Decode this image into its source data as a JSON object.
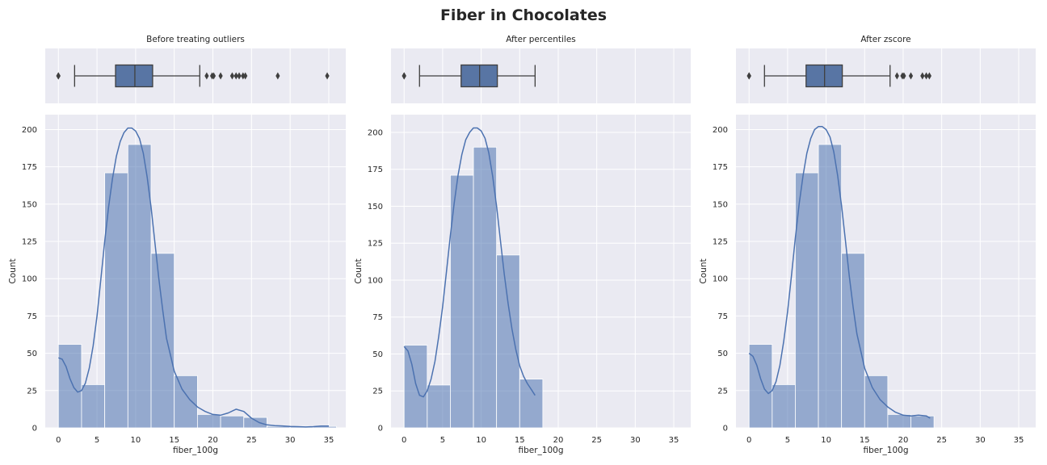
{
  "suptitle": "Fiber in Chocolates",
  "colors": {
    "panel_bg": "#eaeaf2",
    "grid": "#ffffff",
    "bar_fill": "#4c72b0",
    "bar_alpha": 0.55,
    "kde_line": "#4c72b0",
    "box_fill": "#5875a4",
    "box_edge": "#3f3f3f"
  },
  "chart_data": [
    {
      "type": "bar",
      "role": "histogram-with-kde",
      "title": "Before treating outliers",
      "xlabel": "fiber_100g",
      "ylabel": "Count",
      "xlim": [
        -1.7,
        37.2
      ],
      "ylim": [
        0,
        210
      ],
      "xticks": [
        0,
        5,
        10,
        15,
        20,
        25,
        30,
        35
      ],
      "yticks": [
        0,
        25,
        50,
        75,
        100,
        125,
        150,
        175,
        200
      ],
      "grid": true,
      "bins": [
        {
          "x0": 0,
          "x1": 3,
          "count": 56
        },
        {
          "x0": 3,
          "x1": 6,
          "count": 29
        },
        {
          "x0": 6,
          "x1": 9,
          "count": 171
        },
        {
          "x0": 9,
          "x1": 12,
          "count": 190
        },
        {
          "x0": 12,
          "x1": 15,
          "count": 117
        },
        {
          "x0": 15,
          "x1": 18,
          "count": 35
        },
        {
          "x0": 18,
          "x1": 21,
          "count": 9
        },
        {
          "x0": 21,
          "x1": 24,
          "count": 8
        },
        {
          "x0": 24,
          "x1": 27,
          "count": 7
        },
        {
          "x0": 27,
          "x1": 30,
          "count": 1
        },
        {
          "x0": 30,
          "x1": 33,
          "count": 1
        },
        {
          "x0": 33,
          "x1": 36,
          "count": 1
        }
      ],
      "kde": [
        [
          0,
          47
        ],
        [
          0.5,
          46
        ],
        [
          1,
          41
        ],
        [
          1.5,
          33
        ],
        [
          2,
          27
        ],
        [
          2.5,
          24
        ],
        [
          3,
          25
        ],
        [
          3.5,
          30
        ],
        [
          4,
          40
        ],
        [
          4.5,
          55
        ],
        [
          5,
          75
        ],
        [
          5.5,
          100
        ],
        [
          6,
          125
        ],
        [
          6.5,
          148
        ],
        [
          7,
          167
        ],
        [
          7.5,
          182
        ],
        [
          8,
          192
        ],
        [
          8.5,
          198
        ],
        [
          9,
          201
        ],
        [
          9.5,
          201
        ],
        [
          10,
          199
        ],
        [
          10.5,
          194
        ],
        [
          11,
          184
        ],
        [
          11.5,
          168
        ],
        [
          12,
          148
        ],
        [
          12.5,
          124
        ],
        [
          13,
          100
        ],
        [
          13.5,
          79
        ],
        [
          14,
          60
        ],
        [
          15,
          38
        ],
        [
          16,
          26
        ],
        [
          17,
          19
        ],
        [
          18,
          14
        ],
        [
          19,
          11
        ],
        [
          20,
          9
        ],
        [
          21,
          8.5
        ],
        [
          22,
          10
        ],
        [
          23,
          12.5
        ],
        [
          24,
          11
        ],
        [
          25,
          6.5
        ],
        [
          26,
          3.5
        ],
        [
          27,
          2
        ],
        [
          28,
          1.5
        ],
        [
          29,
          1.3
        ],
        [
          30,
          1
        ],
        [
          31,
          0.8
        ],
        [
          32,
          0.6
        ],
        [
          33,
          0.8
        ],
        [
          34,
          1.2
        ],
        [
          35,
          1.2
        ]
      ],
      "box": {
        "whisker_low": 2.1,
        "q1": 7.4,
        "median": 9.9,
        "q3": 12.2,
        "whisker_high": 18.3,
        "fliers": [
          0,
          0,
          0,
          19.2,
          19.9,
          20.1,
          21.0,
          22.5,
          23.0,
          23.4,
          23.9,
          24.2,
          28.4,
          34.8
        ]
      }
    },
    {
      "type": "bar",
      "role": "histogram-with-kde",
      "title": "After percentiles",
      "xlabel": "fiber_100g",
      "ylabel": "Count",
      "xlim": [
        -1.7,
        37.2
      ],
      "ylim": [
        0,
        212
      ],
      "xticks": [
        0,
        5,
        10,
        15,
        20,
        25,
        30,
        35
      ],
      "yticks": [
        0,
        25,
        50,
        75,
        100,
        125,
        150,
        175,
        200
      ],
      "grid": true,
      "bins": [
        {
          "x0": 0,
          "x1": 3,
          "count": 56
        },
        {
          "x0": 3,
          "x1": 6,
          "count": 29
        },
        {
          "x0": 6,
          "x1": 9,
          "count": 171
        },
        {
          "x0": 9,
          "x1": 12,
          "count": 190
        },
        {
          "x0": 12,
          "x1": 15,
          "count": 117
        },
        {
          "x0": 15,
          "x1": 18,
          "count": 33
        }
      ],
      "kde": [
        [
          0,
          55
        ],
        [
          0.5,
          52
        ],
        [
          1,
          43
        ],
        [
          1.5,
          30
        ],
        [
          2,
          22
        ],
        [
          2.5,
          21
        ],
        [
          3,
          25
        ],
        [
          3.5,
          33
        ],
        [
          4,
          45
        ],
        [
          4.5,
          62
        ],
        [
          5,
          82
        ],
        [
          5.5,
          106
        ],
        [
          6,
          130
        ],
        [
          6.5,
          152
        ],
        [
          7,
          171
        ],
        [
          7.5,
          185
        ],
        [
          8,
          195
        ],
        [
          8.5,
          200
        ],
        [
          9,
          203
        ],
        [
          9.5,
          203
        ],
        [
          10,
          201
        ],
        [
          10.5,
          196
        ],
        [
          11,
          186
        ],
        [
          11.5,
          170
        ],
        [
          12,
          150
        ],
        [
          12.5,
          127
        ],
        [
          13,
          104
        ],
        [
          13.5,
          84
        ],
        [
          14,
          67
        ],
        [
          14.5,
          53
        ],
        [
          15,
          42
        ],
        [
          15.5,
          35
        ],
        [
          16,
          30
        ],
        [
          16.5,
          26
        ],
        [
          17,
          22
        ]
      ],
      "box": {
        "whisker_low": 2.0,
        "q1": 7.4,
        "median": 9.8,
        "q3": 12.1,
        "whisker_high": 17.0,
        "fliers": [
          0,
          0,
          0
        ]
      }
    },
    {
      "type": "bar",
      "role": "histogram-with-kde",
      "title": "After zscore",
      "xlabel": "fiber_100g",
      "ylabel": "Count",
      "xlim": [
        -1.7,
        37.2
      ],
      "ylim": [
        0,
        210
      ],
      "xticks": [
        0,
        5,
        10,
        15,
        20,
        25,
        30,
        35
      ],
      "yticks": [
        0,
        25,
        50,
        75,
        100,
        125,
        150,
        175,
        200
      ],
      "grid": true,
      "bins": [
        {
          "x0": 0,
          "x1": 3,
          "count": 56
        },
        {
          "x0": 3,
          "x1": 6,
          "count": 29
        },
        {
          "x0": 6,
          "x1": 9,
          "count": 171
        },
        {
          "x0": 9,
          "x1": 12,
          "count": 190
        },
        {
          "x0": 12,
          "x1": 15,
          "count": 117
        },
        {
          "x0": 15,
          "x1": 18,
          "count": 35
        },
        {
          "x0": 18,
          "x1": 21,
          "count": 9
        },
        {
          "x0": 21,
          "x1": 24,
          "count": 8
        }
      ],
      "kde": [
        [
          0,
          50
        ],
        [
          0.5,
          48
        ],
        [
          1,
          42
        ],
        [
          1.5,
          33
        ],
        [
          2,
          26
        ],
        [
          2.5,
          23
        ],
        [
          3,
          25
        ],
        [
          3.5,
          31
        ],
        [
          4,
          42
        ],
        [
          4.5,
          58
        ],
        [
          5,
          78
        ],
        [
          5.5,
          102
        ],
        [
          6,
          127
        ],
        [
          6.5,
          150
        ],
        [
          7,
          169
        ],
        [
          7.5,
          184
        ],
        [
          8,
          194
        ],
        [
          8.5,
          200
        ],
        [
          9,
          202
        ],
        [
          9.5,
          202
        ],
        [
          10,
          200
        ],
        [
          10.5,
          195
        ],
        [
          11,
          185
        ],
        [
          11.5,
          169
        ],
        [
          12,
          149
        ],
        [
          12.5,
          126
        ],
        [
          13,
          102
        ],
        [
          13.5,
          81
        ],
        [
          14,
          63
        ],
        [
          15,
          40
        ],
        [
          16,
          27
        ],
        [
          17,
          19
        ],
        [
          18,
          14
        ],
        [
          19,
          10.5
        ],
        [
          20,
          8.5
        ],
        [
          21,
          8
        ],
        [
          22,
          8.5
        ],
        [
          23,
          8
        ],
        [
          23.5,
          6.5
        ]
      ],
      "box": {
        "whisker_low": 2.0,
        "q1": 7.4,
        "median": 9.8,
        "q3": 12.1,
        "whisker_high": 18.3,
        "fliers": [
          0,
          0,
          0,
          19.2,
          19.9,
          20.1,
          21.0,
          22.5,
          23.0,
          23.4
        ]
      }
    }
  ]
}
